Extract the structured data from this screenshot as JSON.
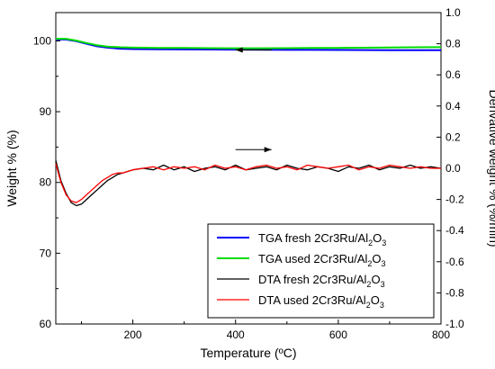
{
  "chart_data": {
    "type": "line",
    "title": "",
    "xlabel": "Temperature (ºC)",
    "ylabel_left": "Weight % (%)",
    "ylabel_right": "Derivative weight % (%/min)",
    "xlim": [
      50,
      800
    ],
    "ylim_left": [
      60,
      104
    ],
    "ylim_right": [
      -1.0,
      1.0
    ],
    "x_ticks": [
      200,
      400,
      600,
      800
    ],
    "y_ticks_left": [
      60,
      70,
      80,
      90,
      100
    ],
    "y_ticks_right": [
      -1.0,
      -0.8,
      -0.6,
      -0.4,
      -0.2,
      0.0,
      0.2,
      0.4,
      0.6,
      0.8,
      1.0
    ],
    "grid": false,
    "legend_position": "bottom-right",
    "series": [
      {
        "name": "TGA fresh 2Cr3Ru/Al2O3",
        "axis": "left",
        "color": "#0000ff",
        "x": [
          50,
          70,
          90,
          110,
          130,
          150,
          175,
          200,
          250,
          300,
          350,
          400,
          450,
          500,
          550,
          600,
          650,
          700,
          750,
          800
        ],
        "y": [
          100.2,
          100.2,
          99.95,
          99.6,
          99.25,
          99.05,
          98.9,
          98.85,
          98.82,
          98.8,
          98.78,
          98.77,
          98.75,
          98.74,
          98.73,
          98.72,
          98.71,
          98.7,
          98.7,
          98.7
        ]
      },
      {
        "name": "TGA used 2Cr3Ru/Al2O3",
        "axis": "left",
        "color": "#00dd00",
        "x": [
          50,
          70,
          90,
          110,
          130,
          150,
          175,
          200,
          250,
          300,
          350,
          400,
          450,
          500,
          550,
          600,
          650,
          700,
          750,
          800
        ],
        "y": [
          100.3,
          100.3,
          100.05,
          99.7,
          99.4,
          99.2,
          99.1,
          99.05,
          99.02,
          99.0,
          98.98,
          98.97,
          98.97,
          98.98,
          99.0,
          99.02,
          99.04,
          99.07,
          99.1,
          99.12
        ]
      },
      {
        "name": "DTA fresh 2Cr3Ru/Al2O3",
        "axis": "right",
        "color": "#000000",
        "x": [
          50,
          60,
          70,
          80,
          90,
          100,
          110,
          120,
          130,
          140,
          150,
          160,
          170,
          180,
          190,
          200,
          220,
          240,
          260,
          280,
          300,
          320,
          340,
          360,
          380,
          400,
          420,
          440,
          460,
          480,
          500,
          520,
          540,
          560,
          580,
          600,
          620,
          640,
          660,
          680,
          700,
          720,
          740,
          760,
          780,
          800
        ],
        "y": [
          0.05,
          -0.08,
          -0.16,
          -0.22,
          -0.24,
          -0.23,
          -0.2,
          -0.17,
          -0.14,
          -0.11,
          -0.08,
          -0.06,
          -0.04,
          -0.03,
          -0.02,
          -0.01,
          0.0,
          -0.01,
          0.02,
          -0.01,
          0.01,
          -0.02,
          0.0,
          0.01,
          -0.01,
          0.02,
          -0.01,
          0.0,
          0.01,
          -0.01,
          0.02,
          0.0,
          -0.01,
          0.01,
          0.0,
          -0.02,
          0.01,
          0.0,
          0.02,
          -0.01,
          0.01,
          0.0,
          0.02,
          0.0,
          0.01,
          0.0
        ]
      },
      {
        "name": "DTA used 2Cr3Ru/Al2O3",
        "axis": "right",
        "color": "#ff0000",
        "x": [
          50,
          60,
          70,
          80,
          90,
          100,
          110,
          120,
          130,
          140,
          150,
          160,
          170,
          180,
          190,
          200,
          220,
          240,
          260,
          280,
          300,
          320,
          340,
          360,
          380,
          400,
          420,
          440,
          460,
          480,
          500,
          520,
          540,
          560,
          580,
          600,
          620,
          640,
          660,
          680,
          700,
          720,
          740,
          760,
          780,
          800
        ],
        "y": [
          0.03,
          -0.09,
          -0.17,
          -0.21,
          -0.22,
          -0.2,
          -0.17,
          -0.14,
          -0.11,
          -0.08,
          -0.06,
          -0.04,
          -0.03,
          -0.03,
          -0.02,
          -0.01,
          0.0,
          0.01,
          -0.01,
          0.01,
          0.0,
          0.01,
          -0.01,
          0.02,
          0.0,
          0.01,
          -0.01,
          0.01,
          0.02,
          0.0,
          0.01,
          -0.01,
          0.02,
          0.01,
          0.0,
          0.01,
          0.02,
          -0.01,
          0.01,
          0.0,
          0.02,
          0.01,
          0.0,
          0.01,
          0.0,
          0.0
        ]
      }
    ],
    "legend": [
      {
        "prefix": "TGA fresh  2Cr3Ru/Al",
        "sub1": "2",
        "mid": "O",
        "sub2": "3",
        "color": "#0000ff"
      },
      {
        "prefix": "TGA used 2Cr3Ru/Al",
        "sub1": "2",
        "mid": "O",
        "sub2": "3",
        "color": "#00dd00"
      },
      {
        "prefix": "DTA fresh 2Cr3Ru/Al",
        "sub1": "2",
        "mid": "O",
        "sub2": "3",
        "color": "#000000"
      },
      {
        "prefix": "DTA used 2Cr3Ru/Al",
        "sub1": "2",
        "mid": "O",
        "sub2": "3",
        "color": "#ff0000"
      }
    ],
    "annotations": [
      {
        "type": "arrow",
        "direction": "left",
        "x_from": 470,
        "x_to": 400,
        "y": 0.76,
        "axis": "right"
      },
      {
        "type": "arrow",
        "direction": "right",
        "x_from": 400,
        "x_to": 470,
        "y": 0.12,
        "axis": "right"
      }
    ]
  }
}
